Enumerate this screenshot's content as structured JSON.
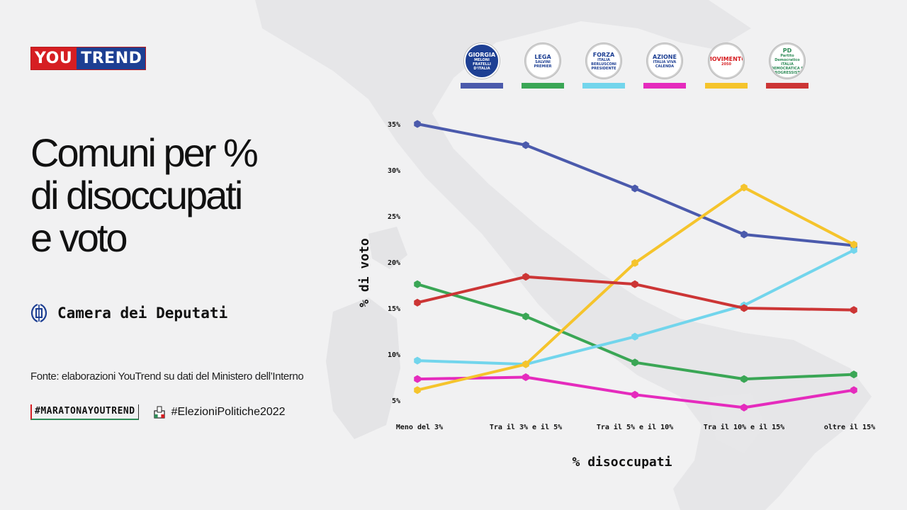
{
  "brand": {
    "you": "You",
    "trend": "Trend"
  },
  "title": {
    "line1": "Comuni per %",
    "line2": "di disoccupati",
    "line3": "e voto"
  },
  "chamber": {
    "label": "Camera dei Deputati"
  },
  "source": "Fonte: elaborazioni YouTrend su dati del Ministero dell’Interno",
  "hashtags": {
    "tag1": "#MARATONAYOUTREND",
    "tag2": "#ElezioniPolitiche2022"
  },
  "parties": [
    {
      "logo_lines": [
        "GIORGIA",
        "MELONI",
        "FRATELLI",
        "D'ITALIA"
      ],
      "color": "#4b5aac"
    },
    {
      "logo_lines": [
        "LEGA",
        "SALVINI",
        "PREMIER"
      ],
      "color": "#3aa655"
    },
    {
      "logo_lines": [
        "FORZA",
        "ITALIA",
        "BERLUSCONI",
        "PRESIDENTE"
      ],
      "color": "#72d5ec"
    },
    {
      "logo_lines": [
        "AZIONE",
        "ITALIA VIVA",
        "CALENDA"
      ],
      "color": "#e52bbd"
    },
    {
      "logo_lines": [
        "MOVIMENTO",
        "2050"
      ],
      "color": "#f5c42c"
    },
    {
      "logo_lines": [
        "PD",
        "Partito Democratico",
        "ITALIA DEMOCRATICA E PROGRESSISTA"
      ],
      "color": "#cc3535"
    }
  ],
  "chart_data": {
    "type": "line",
    "categories": [
      "Meno del 3%",
      "Tra il 3% e il 5%",
      "Tra il 5% e il 10%",
      "Tra il 10% e il 15%",
      "oltre il 15%"
    ],
    "xlabel": "% disoccupati",
    "ylabel": "% di voto",
    "ylim": [
      5,
      35
    ],
    "yticks": [
      5,
      10,
      15,
      20,
      25,
      30,
      35
    ],
    "ytick_labels": [
      "5%",
      "10%",
      "15%",
      "20%",
      "25%",
      "30%",
      "35%"
    ],
    "grid": false,
    "legend": "top (party logos with color bars)",
    "series": [
      {
        "color": "#4b5aac",
        "values": [
          35.0,
          32.7,
          28.0,
          23.0,
          21.8
        ]
      },
      {
        "color": "#3aa655",
        "values": [
          17.6,
          14.1,
          9.1,
          7.3,
          7.8
        ]
      },
      {
        "color": "#72d5ec",
        "values": [
          9.3,
          8.9,
          11.9,
          15.3,
          21.3
        ]
      },
      {
        "color": "#e52bbd",
        "values": [
          7.3,
          7.5,
          5.6,
          4.2,
          6.1
        ]
      },
      {
        "color": "#f5c42c",
        "values": [
          6.1,
          8.9,
          19.9,
          28.1,
          21.9
        ]
      },
      {
        "color": "#cc3535",
        "values": [
          15.6,
          18.4,
          17.6,
          15.0,
          14.8
        ]
      }
    ]
  }
}
